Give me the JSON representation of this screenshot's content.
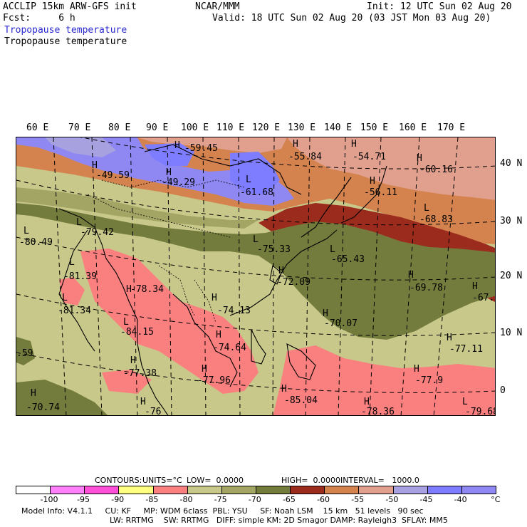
{
  "header": {
    "line1_left": "ACCLIP 15km ARW-GFS init",
    "line1_center": "NCAR/MMM",
    "line1_right": "Init: 12 UTC Sun 02 Aug 20",
    "fcst_label": "Fcst:     6 h",
    "valid": "Valid: 18 UTC Sun 02 Aug 20 (03 JST Mon 03 Aug 20)",
    "field_title_1": "Tropopause temperature",
    "field_title_2": "Tropopause temperature"
  },
  "longitude_labels": [
    "60 E",
    "70 E",
    "80 E",
    "90 E",
    "100 E",
    "110 E",
    "120 E",
    "130 E",
    "140 E",
    "150 E",
    "160 E",
    "170 E"
  ],
  "latitude_labels": [
    "40 N",
    "30 N",
    "20 N",
    "10 N",
    "0"
  ],
  "map_labels": [
    {
      "mark": "H",
      "value": "-59.45"
    },
    {
      "mark": "H",
      "value": "-55.84"
    },
    {
      "mark": "H",
      "value": "-54.71"
    },
    {
      "mark": "H",
      "value": "-49.59"
    },
    {
      "mark": "H",
      "value": "-49.29"
    },
    {
      "mark": "L",
      "value": "-61.68"
    },
    {
      "mark": "H",
      "value": "-56.11"
    },
    {
      "mark": "H",
      "value": "-60.16"
    },
    {
      "mark": "L",
      "value": "-68.83"
    },
    {
      "mark": "L",
      "value": "-79.42"
    },
    {
      "mark": "L",
      "value": "-80.49"
    },
    {
      "mark": "L",
      "value": "-75.33"
    },
    {
      "mark": "L",
      "value": "-65.43"
    },
    {
      "mark": "L",
      "value": "-81.39"
    },
    {
      "mark": "H",
      "value": "-78.34"
    },
    {
      "mark": "H",
      "value": "-72.09"
    },
    {
      "mark": "H",
      "value": "-69.78"
    },
    {
      "mark": "H",
      "value": "-67."
    },
    {
      "mark": "L",
      "value": "-81.34"
    },
    {
      "mark": "H",
      "value": "-74.13"
    },
    {
      "mark": "H",
      "value": "-70.07"
    },
    {
      "mark": "L",
      "value": "-84.15"
    },
    {
      "mark": "H",
      "value": "-74.64"
    },
    {
      "mark": "H",
      "value": "-77.11"
    },
    {
      "mark": "H",
      "value": "-77.38"
    },
    {
      "mark": "H",
      "value": "-77.96"
    },
    {
      "mark": "H",
      "value": "-77.9"
    },
    {
      "mark": "",
      "value": ".59"
    },
    {
      "mark": "H",
      "value": "-70.74"
    },
    {
      "mark": "H",
      "value": "-85.04"
    },
    {
      "mark": "H",
      "value": "-78.36"
    },
    {
      "mark": "L",
      "value": "-79.68"
    },
    {
      "mark": "H",
      "value": "-76"
    }
  ],
  "contour_info": {
    "contours": "CONTOURS:",
    "units": "UNITS=°C",
    "low": "LOW=  0.0000",
    "high": "HIGH=  0.0000",
    "interval": "INTERVAL=   1000.0"
  },
  "colorbar": {
    "colors": [
      "#ffffff",
      "#ff80ff",
      "#ff4fd6",
      "#ffff80",
      "#fa8080",
      "#c8c88a",
      "#a3a565",
      "#737c3c",
      "#9b2b1c",
      "#d4834f",
      "#e1a08e",
      "#a7a1e0",
      "#7f7dff",
      "#8f88f2"
    ],
    "labels": [
      "-100",
      "-95",
      "-90",
      "-85",
      "-80",
      "-75",
      "-70",
      "-65",
      "-60",
      "-55",
      "-50",
      "-45",
      "-40",
      "°C"
    ]
  },
  "footer": {
    "line1": "Model Info: V4.1.1     CU: KF     MP: WDM 6class  PBL: YSU     SF: Noah LSM    15 km   51 levels   90 sec",
    "line2": "LW: RRTMG    SW: RRTMG   DIFF: simple KM: 2D Smagor DAMP: Rayleigh3  SFLAY: MM5"
  }
}
